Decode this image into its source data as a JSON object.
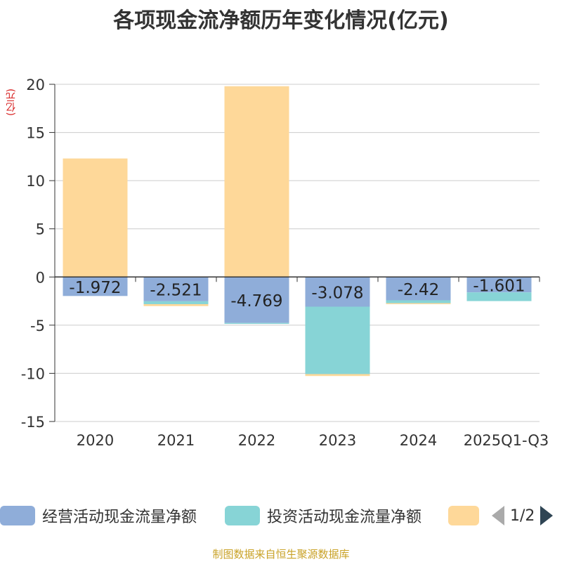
{
  "title": "各项现金流净额历年变化情况(亿元)",
  "unit_label": "(亿元)",
  "source": "制图数据来自恒生聚源数据库",
  "legend": {
    "items": [
      {
        "label": "经营活动现金流量净额",
        "color": "#8fadd9"
      },
      {
        "label": "投资活动现金流量净额",
        "color": "#87d4d6"
      },
      {
        "label": "",
        "color": "#fed899"
      }
    ],
    "page": "1/2"
  },
  "chart_data": {
    "type": "bar",
    "stacked": true,
    "categories": [
      "2020",
      "2021",
      "2022",
      "2023",
      "2024",
      "2025Q1-Q3"
    ],
    "series": [
      {
        "name": "经营活动现金流量净额",
        "color": "#8fadd9",
        "values": [
          -1.972,
          -2.521,
          -4.769,
          -3.078,
          -2.42,
          -1.601
        ]
      },
      {
        "name": "投资活动现金流量净额",
        "color": "#87d4d6",
        "values": [
          0,
          -0.3,
          -0.1,
          -7.0,
          -0.3,
          -0.9
        ]
      },
      {
        "name": "",
        "color": "#fed899",
        "values": [
          12.3,
          -0.2,
          19.8,
          -0.2,
          -0.1,
          0
        ]
      }
    ],
    "data_labels": [
      "-1.972",
      "-2.521",
      "-4.769",
      "-3.078",
      "-2.42",
      "-1.601"
    ],
    "y_ticks": [
      "20",
      "15",
      "10",
      "5",
      "0",
      "-5",
      "-10",
      "-15"
    ],
    "ylim": [
      -15,
      20
    ],
    "grid": true
  }
}
